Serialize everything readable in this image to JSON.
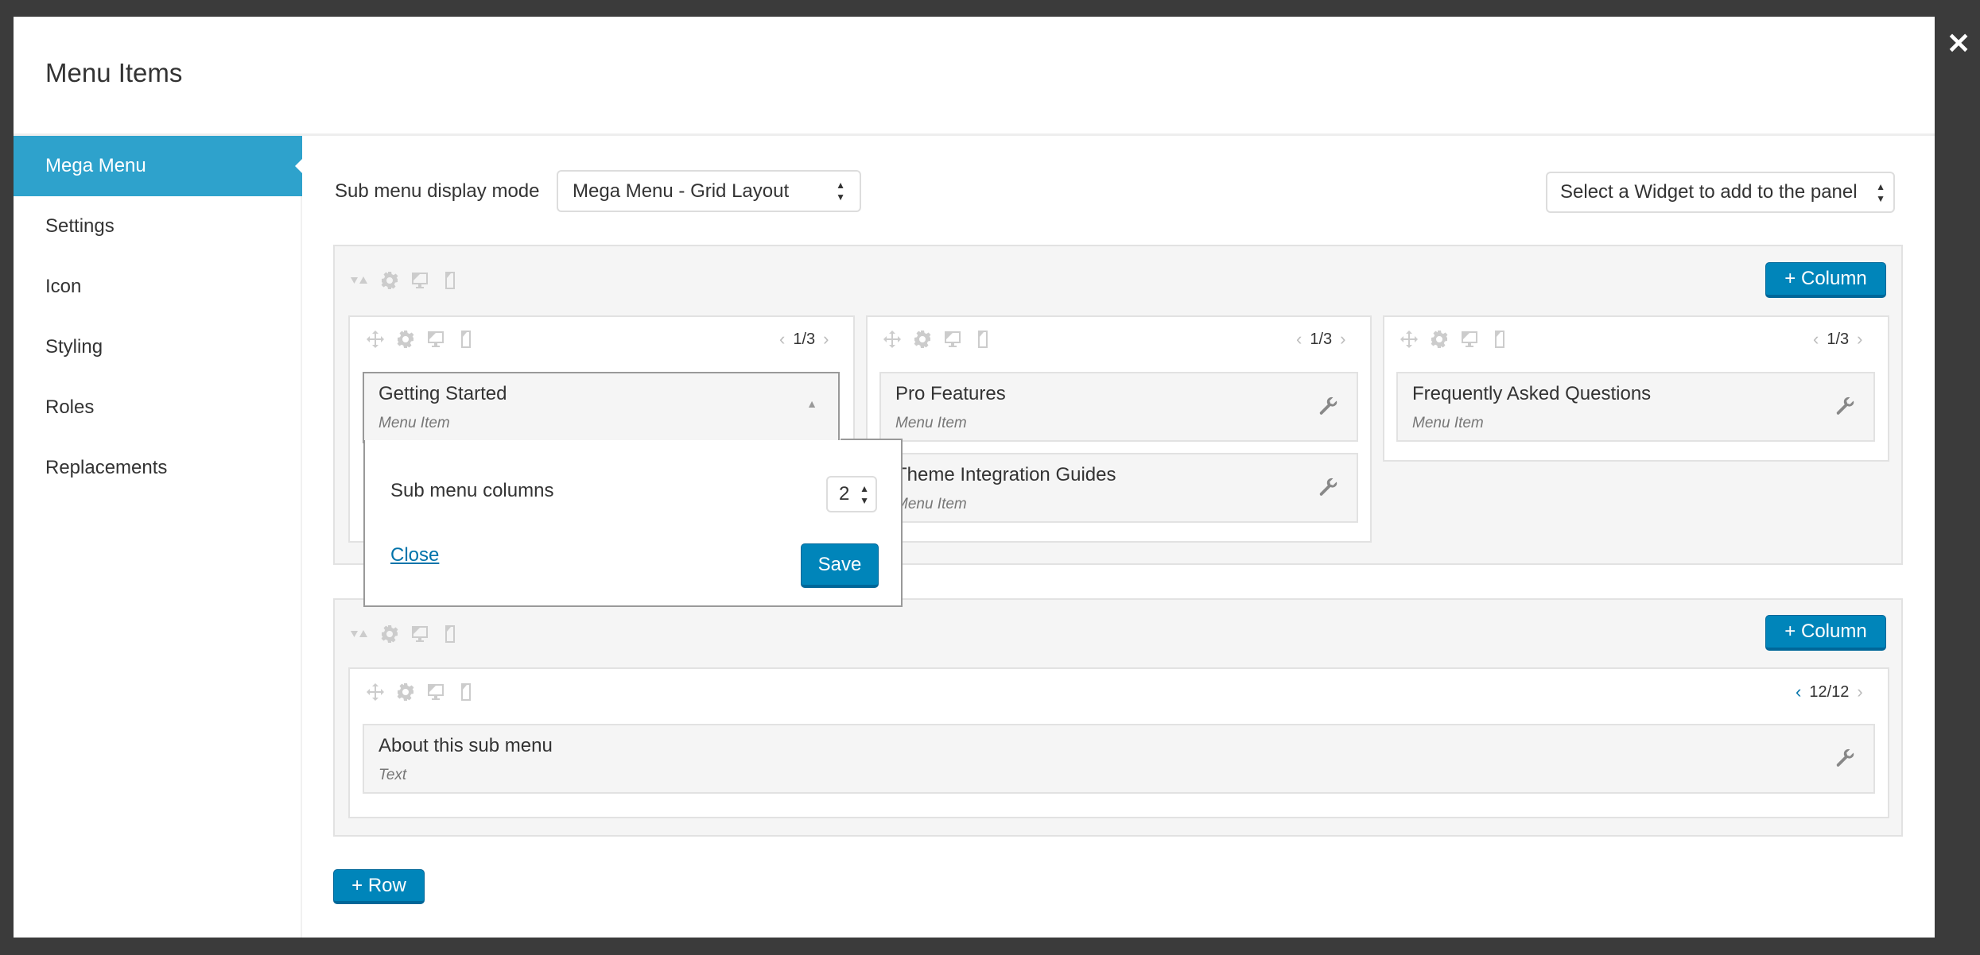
{
  "modal": {
    "title": "Menu Items",
    "close_icon": "close-icon"
  },
  "sidebar": {
    "items": [
      {
        "label": "Mega Menu",
        "active": true
      },
      {
        "label": "Settings"
      },
      {
        "label": "Icon"
      },
      {
        "label": "Styling"
      },
      {
        "label": "Roles"
      },
      {
        "label": "Replacements"
      }
    ]
  },
  "toolbar": {
    "display_mode_label": "Sub menu display mode",
    "display_mode_value": "Mega Menu - Grid Layout",
    "widget_select": "Select a Widget to add to the panel"
  },
  "rows": [
    {
      "add_column_label": "+ Column",
      "columns": [
        {
          "width": "1/3",
          "items": [
            {
              "name": "Getting Started",
              "type": "Menu Item"
            }
          ]
        },
        {
          "width": "1/3",
          "items": [
            {
              "name": "Pro Features",
              "type": "Menu Item"
            },
            {
              "name": "Theme Integration Guides",
              "type": "Menu Item"
            }
          ]
        },
        {
          "width": "1/3",
          "items": [
            {
              "name": "Frequently Asked Questions",
              "type": "Menu Item"
            }
          ]
        }
      ]
    },
    {
      "add_column_label": "+ Column",
      "columns": [
        {
          "width": "12/12",
          "items": [
            {
              "name": "About this sub menu",
              "type": "Text"
            }
          ]
        }
      ]
    }
  ],
  "popup": {
    "label": "Sub menu columns",
    "value": "2",
    "close_label": "Close",
    "save_label": "Save"
  },
  "add_row_label": "+ Row",
  "colors": {
    "accent": "#2ea2cc",
    "button": "#0085ba",
    "link": "#0073aa"
  }
}
